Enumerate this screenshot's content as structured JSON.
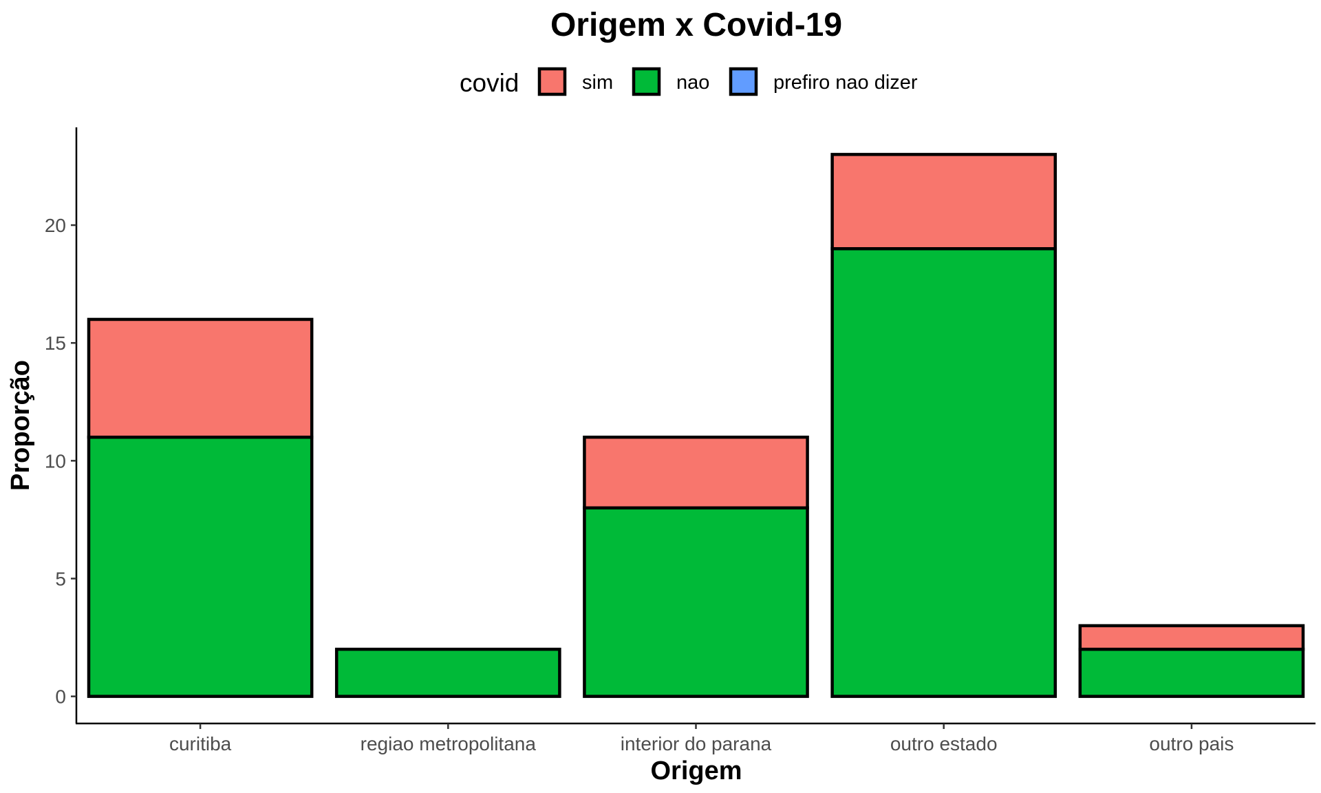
{
  "chart_data": {
    "type": "bar",
    "stacked": true,
    "title": "Origem x Covid-19",
    "xlabel": "Origem",
    "ylabel": "Proporção",
    "categories": [
      "curitiba",
      "regiao metropolitana",
      "interior do parana",
      "outro estado",
      "outro pais"
    ],
    "series": [
      {
        "name": "sim",
        "color": "#F8766D",
        "values": [
          5,
          0,
          3,
          4,
          1
        ]
      },
      {
        "name": "nao",
        "color": "#00BA38",
        "values": [
          11,
          2,
          8,
          19,
          2
        ]
      },
      {
        "name": "prefiro nao dizer",
        "color": "#619CFF",
        "values": [
          0,
          0,
          0,
          0,
          0
        ]
      }
    ],
    "stack_order_bottom_to_top": [
      "nao",
      "sim",
      "prefiro nao dizer"
    ],
    "yticks": [
      0,
      5,
      10,
      15,
      20
    ],
    "ylim": [
      -1.15,
      24.15
    ],
    "legend": {
      "title": "covid",
      "placement": "top"
    },
    "grid": false
  }
}
